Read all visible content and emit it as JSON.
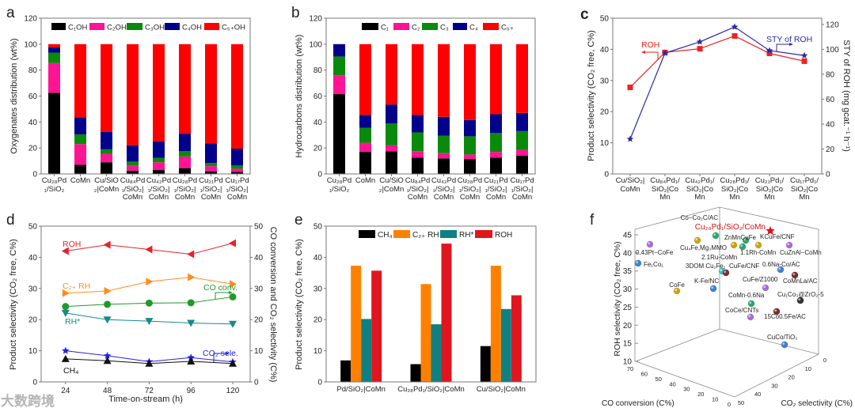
{
  "figure": {
    "panel_labels": [
      "a",
      "b",
      "c",
      "d",
      "e",
      "f"
    ],
    "watermark": "大数跨境"
  },
  "chart_data": [
    {
      "type": "bar",
      "stacked": true,
      "ylabel": "Oxygenates distribution (wt%)",
      "ylim": [
        0,
        120
      ],
      "yticks": [
        0,
        20,
        40,
        60,
        80,
        100,
        120
      ],
      "legend_position": "top",
      "categories": [
        "Cu₂₈Pd₁/SiO₂",
        "CoMn",
        "Cu/SiO₂|CoMn",
        "Cu₈₄Pd₁/SiO₂|CoMn",
        "Cu₄₂Pd₁/SiO₂|CoMn",
        "Cu₂₈Pd₁/SiO₂|CoMn",
        "Cu₂₁Pd₁/SiO₂|CoMn",
        "Cu₁₇Pd₁/SiO₂|CoMn"
      ],
      "series": [
        {
          "name": "C₁OH",
          "color": "#000000",
          "values": [
            62.5,
            7,
            9,
            2.5,
            3,
            4.5,
            2,
            1.5
          ]
        },
        {
          "name": "C₂OH",
          "color": "#ff1493",
          "values": [
            23,
            16,
            6.5,
            4,
            6,
            9,
            4,
            2.5
          ]
        },
        {
          "name": "C₃OH",
          "color": "#0a8a0a",
          "values": [
            8,
            7.5,
            3.5,
            3,
            3.5,
            4,
            2.5,
            2.5
          ]
        },
        {
          "name": "C₄OH",
          "color": "#00008b",
          "values": [
            4,
            13,
            13.5,
            12.5,
            12.5,
            13.5,
            15,
            13
          ]
        },
        {
          "name": "C₅₊OH",
          "color": "#ff0000",
          "values": [
            2.5,
            56.5,
            67.5,
            78,
            75,
            69,
            76.5,
            80.5
          ]
        }
      ]
    },
    {
      "type": "bar",
      "stacked": true,
      "ylabel": "Hydrocarbons distribution (wt%)",
      "ylim": [
        0,
        120
      ],
      "yticks": [
        0,
        20,
        40,
        60,
        80,
        100,
        120
      ],
      "legend_position": "top",
      "categories": [
        "Cu₂₈Pd₁/SiO₂",
        "CoMn",
        "Cu/SiO₂|CoMn",
        "Cu₈₄Pd₁/SiO₂|CoMn",
        "Cu₄₂Pd₁/SiO₂|CoMn",
        "Cu₂₈Pd₁/SiO₂|CoMn",
        "Cu₂₁Pd₁/SiO₂|CoMn",
        "Cu₁₇Pd₁/SiO₂|CoMn"
      ],
      "series": [
        {
          "name": "C₁",
          "color": "#000000",
          "values": [
            61.5,
            17,
            17.5,
            12.5,
            12,
            11.5,
            12.5,
            14
          ]
        },
        {
          "name": "C₂",
          "color": "#ff1493",
          "values": [
            14.5,
            7,
            4.5,
            5,
            4,
            3.5,
            4.5,
            4.5
          ]
        },
        {
          "name": "C₃",
          "color": "#0a8a0a",
          "values": [
            14.5,
            11.5,
            17,
            14.5,
            13.5,
            14,
            14.5,
            14.5
          ]
        },
        {
          "name": "C₄",
          "color": "#00008b",
          "values": [
            9.5,
            10,
            14.5,
            13.5,
            14.5,
            12.5,
            14.5,
            14
          ]
        },
        {
          "name": "C₅₊",
          "color": "#ff0000",
          "values": [
            0,
            54.5,
            46.5,
            54.5,
            56,
            58.5,
            54,
            53
          ]
        }
      ]
    },
    {
      "type": "line",
      "ylabel": "Product selectivity (CO₂ free, C%)",
      "y2label": "STY of ROH (mg gcat.⁻¹ h⁻¹)",
      "ylim": [
        0,
        50
      ],
      "y2lim": [
        0,
        125
      ],
      "yticks": [
        0,
        10,
        20,
        30,
        40,
        50
      ],
      "y2ticks": [
        0,
        20,
        40,
        60,
        80,
        100,
        120
      ],
      "categories": [
        "Cu/SiO₂|CoMn",
        "Cu₈₄Pd₁/SiO₂|CoMn",
        "Cu₄₂Pd₁/SiO₂|CoMn",
        "Cu₂₈Pd₁/SiO₂|CoMn",
        "Cu₂₁Pd₁/SiO₂|CoMn",
        "Cu₁₇Pd₁/SiO₂|CoMn"
      ],
      "series": [
        {
          "name": "ROH",
          "axis": "left",
          "color": "#ee2222",
          "marker": "square",
          "values": [
            27.8,
            39.0,
            40.2,
            44.3,
            38.7,
            36.2
          ]
        },
        {
          "name": "STY of ROH",
          "axis": "right",
          "color": "#2a2aa8",
          "marker": "star",
          "values": [
            28,
            97,
            106,
            118,
            99,
            95
          ]
        }
      ]
    },
    {
      "type": "line",
      "xlabel": "Time-on-stream (h)",
      "ylabel": "Product selectivity (CO₂ free, C%)",
      "y2label": "CO conversion and CO₂ selectivity (C%)",
      "xlim": [
        10,
        130
      ],
      "ylim": [
        0,
        50
      ],
      "y2lim": [
        0,
        50
      ],
      "x": [
        24,
        48,
        72,
        96,
        120
      ],
      "xticks": [
        24,
        48,
        72,
        96,
        120
      ],
      "yticks": [
        0,
        10,
        20,
        30,
        40,
        50
      ],
      "series": [
        {
          "name": "ROH",
          "axis": "left",
          "color": "#e8212a",
          "marker": "triangle-left",
          "values": [
            42.0,
            44.0,
            42.5,
            41.0,
            44.5
          ]
        },
        {
          "name": "C₂₊ RH",
          "axis": "left",
          "color": "#ff8c1a",
          "marker": "triangle-right",
          "values": [
            28.5,
            29.2,
            32.2,
            33.6,
            31.4
          ]
        },
        {
          "name": "CO conv.",
          "axis": "right",
          "color": "#22992a",
          "marker": "circle",
          "values": [
            24.2,
            24.9,
            25.3,
            25.4,
            27.3
          ]
        },
        {
          "name": "RH*",
          "axis": "left",
          "color": "#178a8a",
          "marker": "triangle-down",
          "values": [
            22.1,
            20.0,
            19.5,
            18.9,
            18.6
          ]
        },
        {
          "name": "CO₂ sele.",
          "axis": "right",
          "color": "#2222e6",
          "marker": "star",
          "values": [
            10.0,
            8.4,
            6.5,
            7.8,
            6.4
          ]
        },
        {
          "name": "CH₄",
          "axis": "left",
          "color": "#111111",
          "marker": "triangle-up",
          "values": [
            7.4,
            6.8,
            5.9,
            6.6,
            5.9
          ]
        }
      ]
    },
    {
      "type": "bar",
      "ylabel": "Product selectivity (CO₂ free, C%)",
      "ylim": [
        0,
        50
      ],
      "yticks": [
        0,
        10,
        20,
        30,
        40,
        50
      ],
      "legend_position": "top",
      "categories": [
        "Pd/SiO₂|CoMn",
        "Cu₂₈Pd₁/SiO₂|CoMn",
        "Cu/SiO₂|CoMn"
      ],
      "series": [
        {
          "name": "CH₄",
          "color": "#000000",
          "values": [
            6.9,
            5.7,
            11.5
          ]
        },
        {
          "name": "C₂₊ RH",
          "color": "#ff8000",
          "values": [
            37.3,
            31.4,
            37.3
          ]
        },
        {
          "name": "RH*",
          "color": "#0f8080",
          "values": [
            20.2,
            18.5,
            23.4
          ]
        },
        {
          "name": "ROH",
          "color": "#e0161f",
          "values": [
            35.7,
            44.4,
            27.8
          ]
        }
      ]
    },
    {
      "type": "scatter",
      "projection": "3d",
      "zlabel": "ROH selectivity (CO₂ free, C%)",
      "xlabel": "CO conversion (C%)",
      "ylabel": "CO₂ selectivity (C%)",
      "zticks": [
        45,
        40,
        35,
        30,
        25,
        20,
        15,
        10
      ],
      "xticks": [
        70,
        60,
        50,
        40,
        30,
        20,
        10,
        0
      ],
      "yticks": [
        0,
        10,
        20,
        30,
        40,
        50
      ],
      "points": [
        {
          "label": "Cu₂₈Pd₁/SiO₂/CoMn",
          "color": "#e01010",
          "marker": "star",
          "highlight": true
        },
        {
          "label": "Co−Co₂C/AC",
          "color": "#2ea36b"
        },
        {
          "label": "0.43Pt−CoFe",
          "color": "#a36fd6"
        },
        {
          "label": "Cu₄Fe,Mg₃MMO",
          "color": "#c9a21a"
        },
        {
          "label": "ZnMnCuFe",
          "color": "#2ea36b"
        },
        {
          "label": "2.1Ru-CoMn",
          "color": "#c9a21a"
        },
        {
          "label": "1.1Rh-CoMn",
          "color": "#2ea36b"
        },
        {
          "label": "KCuFe/CNF",
          "color": "#c9a21a"
        },
        {
          "label": "CuZnAl−CoMn",
          "color": "#a36fd6"
        },
        {
          "label": "Fe₁Co₁",
          "color": "#3f7fd0"
        },
        {
          "label": "0.6Na-Co/AC",
          "color": "#3f7fd0"
        },
        {
          "label": "3DOM Cu₁Fe₁",
          "color": "#2ec4c4"
        },
        {
          "label": "CuFe/CNF",
          "color": "#7a2e2e"
        },
        {
          "label": "CoMnLa/AC",
          "color": "#7a2e2e"
        },
        {
          "label": "CoFe",
          "color": "#c9a21a"
        },
        {
          "label": "K-Fe/NC",
          "color": "#3f7fd0"
        },
        {
          "label": "CuFe/Z1000",
          "color": "#a36fd6"
        },
        {
          "label": "Cu₁Co₃@ZrO₂-5",
          "color": "#333333"
        },
        {
          "label": "CoMn-0.6Na",
          "color": "#2ea36b"
        },
        {
          "label": "15Co0.5Fe/AC",
          "color": "#7a2e2e"
        },
        {
          "label": "CoCe/CNTs",
          "color": "#a36fd6"
        },
        {
          "label": "CuCo/TiO₂",
          "color": "#3f7fd0"
        }
      ]
    }
  ]
}
